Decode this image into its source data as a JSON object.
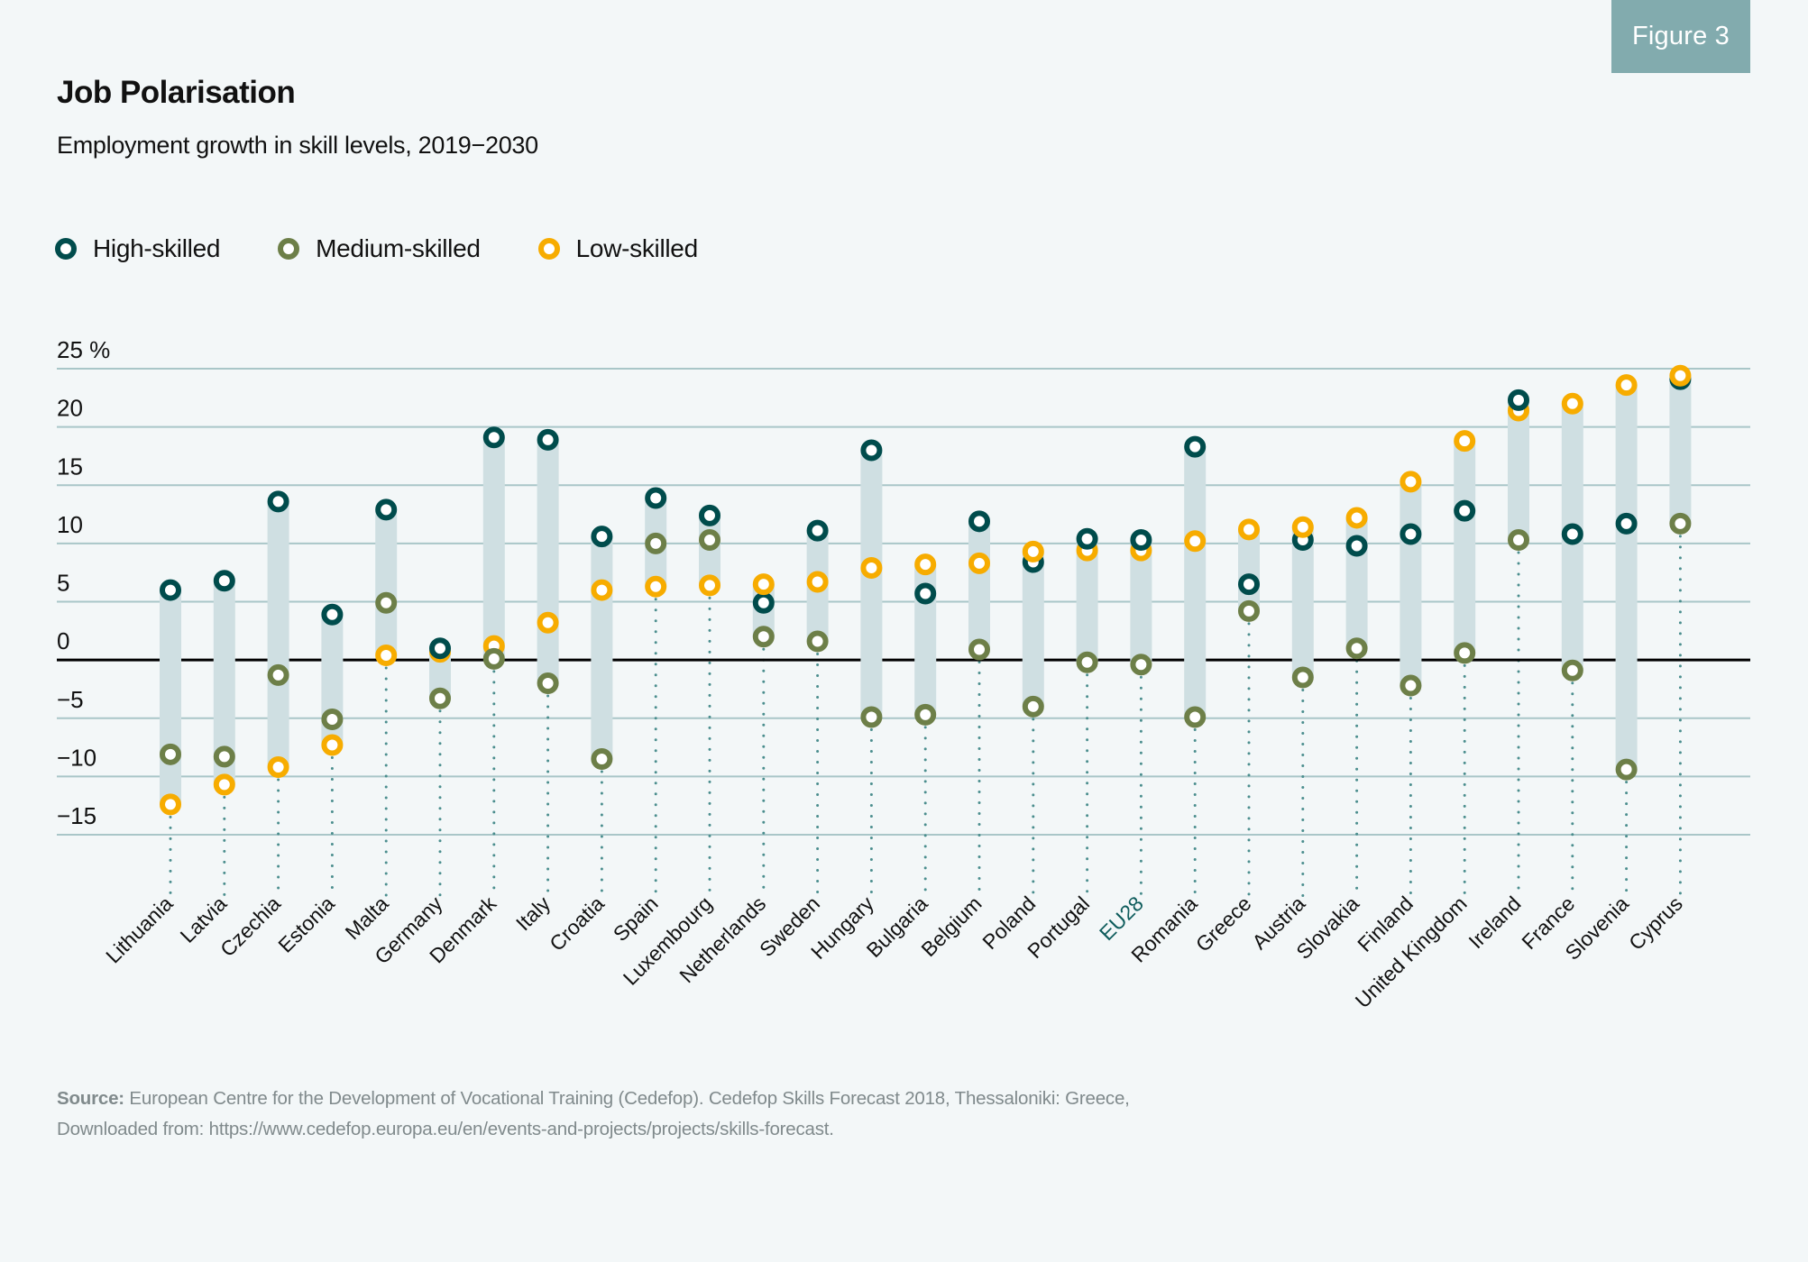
{
  "badge": "Figure 3",
  "title": "Job Polarisation",
  "subtitle": "Employment growth in skill levels, 2019−2030",
  "source": {
    "label": "Source:",
    "line1": " European Centre for the Development of Vocational Training (Cedefop). Cedefop Skills Forecast 2018, Thessaloniki: Greece,",
    "line2": "Downloaded from: https://www.cedefop.europa.eu/en/events-and-projects/projects/skills-forecast."
  },
  "colors": {
    "high": "#004c4c",
    "medium": "#6d7f48",
    "low": "#f7ac00",
    "range_bar": "#cfdfe2",
    "gridline": "#a9c6c8",
    "zero_line": "#000000",
    "dotted": "#4b8e8e",
    "highlight_label": "#0e5c5c",
    "badge": "#82abae"
  },
  "chart_data": {
    "type": "scatter",
    "subtype": "dot-range",
    "title": "Job Polarisation",
    "subtitle": "Employment growth in skill levels, 2019−2030",
    "xlabel": "",
    "ylabel": "",
    "ylim": [
      -15,
      25
    ],
    "yticks": [
      25,
      20,
      15,
      10,
      5,
      0,
      -5,
      -10,
      -15
    ],
    "ytick_labels": [
      "25 %",
      "20",
      "15",
      "10",
      "5",
      "0",
      "−5",
      "−10",
      "−15"
    ],
    "grid": true,
    "legend_position": "top-left",
    "highlight_category": "EU28",
    "categories": [
      "Lithuania",
      "Latvia",
      "Czechia",
      "Estonia",
      "Malta",
      "Germany",
      "Denmark",
      "Italy",
      "Croatia",
      "Spain",
      "Luxembourg",
      "Netherlands",
      "Sweden",
      "Hungary",
      "Bulgaria",
      "Belgium",
      "Poland",
      "Portugal",
      "EU28",
      "Romania",
      "Greece",
      "Austria",
      "Slovakia",
      "Finland",
      "United Kingdom",
      "Ireland",
      "France",
      "Slovenia",
      "Cyprus"
    ],
    "series": [
      {
        "name": "High-skilled",
        "key": "high",
        "values": [
          6.0,
          6.8,
          13.6,
          3.9,
          12.9,
          1.0,
          19.1,
          18.9,
          10.6,
          13.9,
          12.4,
          4.9,
          11.1,
          18.0,
          5.7,
          11.9,
          8.4,
          10.4,
          10.3,
          18.3,
          6.5,
          10.3,
          9.8,
          10.8,
          12.8,
          22.3,
          10.8,
          11.7,
          24.1
        ]
      },
      {
        "name": "Medium-skilled",
        "key": "medium",
        "values": [
          -8.1,
          -8.3,
          -1.3,
          -5.1,
          4.9,
          -3.3,
          0.1,
          -2.0,
          -8.5,
          10.0,
          10.3,
          2.0,
          1.6,
          -4.9,
          -4.7,
          0.9,
          -4.0,
          -0.2,
          -0.4,
          -4.9,
          4.2,
          -1.5,
          1.0,
          -2.2,
          0.6,
          10.3,
          -0.9,
          -9.4,
          11.7
        ]
      },
      {
        "name": "Low-skilled",
        "key": "low",
        "values": [
          -12.4,
          -10.7,
          -9.2,
          -7.3,
          0.4,
          0.7,
          1.2,
          3.2,
          6.0,
          6.3,
          6.4,
          6.5,
          6.7,
          7.9,
          8.2,
          8.3,
          9.3,
          9.4,
          9.4,
          10.2,
          11.2,
          11.4,
          12.2,
          15.3,
          18.8,
          21.4,
          22.0,
          23.6,
          24.4
        ]
      }
    ]
  }
}
